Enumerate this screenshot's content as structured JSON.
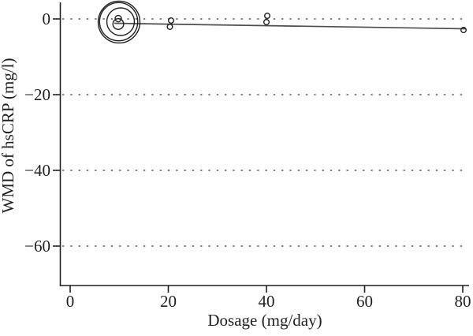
{
  "figure": {
    "background": "#ffffff",
    "axis_color": "#1f1f1f",
    "grid_color": "#6e6e6e",
    "line_color": "#4d4d4d",
    "point_color": "#1f1f1f"
  },
  "chart_data": {
    "type": "scatter",
    "subtype": "meta-regression-bubble-plot",
    "title": "",
    "xlabel": "Dosage (mg/day)",
    "ylabel": "WMD of hsCRP (mg/l)",
    "xlim": [
      -2.1,
      81.3
    ],
    "ylim": [
      -70.5,
      4.4
    ],
    "x_ticks": [
      0,
      20,
      40,
      60,
      80
    ],
    "x_tick_labels": [
      "0",
      "20",
      "40",
      "60",
      "80"
    ],
    "y_ticks": [
      0,
      -20,
      -40,
      -60
    ],
    "y_tick_labels": [
      "0",
      "−20",
      "−40",
      "−60"
    ],
    "grid": "horizontal dotted gridlines at each y tick",
    "legend": "none",
    "points": [
      {
        "x": 9.96,
        "y": -0.83,
        "r": 26.5
      },
      {
        "x": 9.88,
        "y": -0.73,
        "r": 24.2
      },
      {
        "x": 10.28,
        "y": -0.73,
        "r": 17.5
      },
      {
        "x": 9.8,
        "y": -1.35,
        "r": 6.8
      },
      {
        "x": 9.8,
        "y": 0.1,
        "r": 4.0
      },
      {
        "x": 20.56,
        "y": -0.42,
        "r": 3.3
      },
      {
        "x": 20.32,
        "y": -2.08,
        "r": 3.3
      },
      {
        "x": 40.16,
        "y": 0.83,
        "r": 3.3
      },
      {
        "x": 40.0,
        "y": -0.83,
        "r": 3.3
      },
      {
        "x": 80.16,
        "y": -2.92,
        "r": 3.3
      }
    ],
    "points_note": "circle radius r is proportional to study weight (pixels)",
    "regression_line": {
      "x1": 9.0,
      "y1": -1.15,
      "x2": 80.6,
      "y2": -2.6
    }
  }
}
